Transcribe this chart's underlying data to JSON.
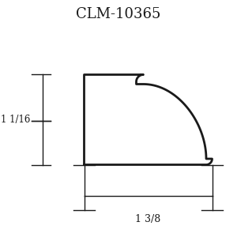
{
  "title": "CLM-10365",
  "title_fontsize": 13,
  "bg_color": "#ffffff",
  "line_color": "#1a1a1a",
  "label_height": "1 1/16",
  "label_width": "1 3/8",
  "figsize": [
    3.0,
    3.0
  ],
  "dpi": 100
}
